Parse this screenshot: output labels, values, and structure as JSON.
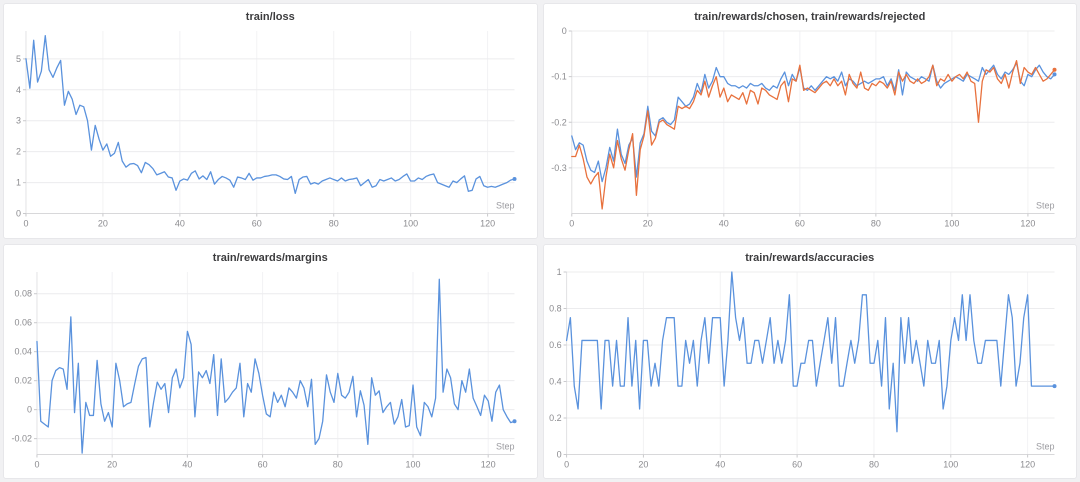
{
  "page": {
    "background": "#f1f1f3",
    "panel_background": "#ffffff",
    "panel_border": "#e7e7ea"
  },
  "style": {
    "grid_h_color": "#ececee",
    "grid_v_color": "#f2f2f4",
    "axis_x_color": "#d8d8da",
    "axis_y_color": "#e3e3e5",
    "tick_mark_color": "#c9c9cc",
    "tick_text_color": "#8b8b8f",
    "step_label_color": "#9b9ba0",
    "title_color": "#3c3c3e",
    "line_blue": "#5a92dd",
    "line_orange": "#e8713d"
  },
  "chart_data": [
    {
      "type": "line",
      "title": "train/loss",
      "xlabel": "Step",
      "xticks": [
        0,
        20,
        40,
        60,
        80,
        100,
        120
      ],
      "xlim": [
        0,
        127
      ],
      "yticks": [
        0,
        1,
        2,
        3,
        4,
        5
      ],
      "ylim": [
        0,
        5.9
      ],
      "grid": true,
      "legend": "none",
      "series": [
        {
          "name": "train/loss",
          "color": "#5a92dd",
          "values": [
            5.0,
            4.05,
            5.6,
            4.25,
            4.6,
            5.75,
            4.65,
            4.4,
            4.7,
            4.95,
            3.5,
            3.95,
            3.7,
            3.2,
            3.5,
            3.45,
            3.0,
            2.05,
            2.85,
            2.4,
            2.05,
            2.25,
            1.85,
            1.95,
            2.3,
            1.7,
            1.5,
            1.6,
            1.62,
            1.55,
            1.32,
            1.65,
            1.58,
            1.45,
            1.25,
            1.3,
            1.35,
            1.18,
            1.15,
            0.75,
            1.05,
            1.12,
            1.08,
            1.3,
            1.38,
            1.12,
            1.22,
            1.1,
            1.35,
            0.95,
            1.1,
            1.2,
            1.15,
            1.08,
            0.85,
            1.18,
            1.15,
            1.1,
            1.3,
            1.08,
            1.15,
            1.15,
            1.2,
            1.22,
            1.25,
            1.25,
            1.2,
            1.12,
            1.1,
            1.2,
            0.65,
            1.1,
            1.18,
            1.2,
            0.95,
            1.0,
            0.95,
            1.05,
            1.1,
            1.15,
            1.1,
            1.05,
            1.15,
            1.05,
            1.1,
            1.12,
            1.15,
            0.9,
            1.0,
            1.1,
            0.85,
            0.9,
            1.1,
            1.05,
            1.1,
            1.15,
            1.05,
            1.1,
            1.2,
            1.28,
            1.05,
            1.05,
            1.15,
            1.1,
            1.2,
            1.25,
            1.28,
            1.0,
            0.95,
            0.9,
            0.85,
            1.05,
            1.0,
            1.12,
            1.22,
            0.72,
            0.75,
            1.12,
            1.2,
            0.9,
            0.85,
            0.88,
            0.85,
            0.9,
            0.95,
            1.0,
            1.08,
            1.12
          ]
        }
      ]
    },
    {
      "type": "line",
      "title": "train/rewards/chosen, train/rewards/rejected",
      "xlabel": "Step",
      "xticks": [
        0,
        20,
        40,
        60,
        80,
        100,
        120
      ],
      "xlim": [
        0,
        127
      ],
      "yticks": [
        0,
        -0.1,
        -0.2,
        -0.3
      ],
      "ylim": [
        -0.4,
        0
      ],
      "grid": true,
      "legend": "none",
      "series": [
        {
          "name": "train/rewards/chosen",
          "color": "#5a92dd",
          "values": [
            -0.23,
            -0.26,
            -0.245,
            -0.25,
            -0.285,
            -0.305,
            -0.31,
            -0.285,
            -0.33,
            -0.3,
            -0.255,
            -0.285,
            -0.215,
            -0.27,
            -0.29,
            -0.25,
            -0.235,
            -0.32,
            -0.245,
            -0.225,
            -0.165,
            -0.22,
            -0.23,
            -0.195,
            -0.19,
            -0.2,
            -0.205,
            -0.195,
            -0.145,
            -0.155,
            -0.165,
            -0.16,
            -0.145,
            -0.115,
            -0.135,
            -0.095,
            -0.125,
            -0.11,
            -0.08,
            -0.1,
            -0.1,
            -0.115,
            -0.12,
            -0.12,
            -0.125,
            -0.12,
            -0.125,
            -0.115,
            -0.12,
            -0.12,
            -0.115,
            -0.125,
            -0.13,
            -0.12,
            -0.125,
            -0.105,
            -0.09,
            -0.12,
            -0.095,
            -0.11,
            -0.08,
            -0.125,
            -0.13,
            -0.12,
            -0.13,
            -0.12,
            -0.11,
            -0.1,
            -0.105,
            -0.1,
            -0.11,
            -0.09,
            -0.12,
            -0.105,
            -0.11,
            -0.12,
            -0.115,
            -0.11,
            -0.115,
            -0.11,
            -0.105,
            -0.105,
            -0.1,
            -0.12,
            -0.105,
            -0.13,
            -0.085,
            -0.14,
            -0.09,
            -0.1,
            -0.105,
            -0.11,
            -0.1,
            -0.105,
            -0.11,
            -0.075,
            -0.11,
            -0.125,
            -0.115,
            -0.11,
            -0.105,
            -0.1,
            -0.105,
            -0.11,
            -0.095,
            -0.1,
            -0.105,
            -0.11,
            -0.08,
            -0.095,
            -0.085,
            -0.075,
            -0.095,
            -0.105,
            -0.09,
            -0.095,
            -0.085,
            -0.07,
            -0.11,
            -0.12,
            -0.095,
            -0.1,
            -0.085,
            -0.075,
            -0.09,
            -0.1,
            -0.105,
            -0.095
          ]
        },
        {
          "name": "train/rewards/rejected",
          "color": "#e8713d",
          "values": [
            -0.275,
            -0.275,
            -0.25,
            -0.28,
            -0.32,
            -0.335,
            -0.32,
            -0.31,
            -0.39,
            -0.32,
            -0.27,
            -0.3,
            -0.24,
            -0.28,
            -0.305,
            -0.26,
            -0.225,
            -0.36,
            -0.26,
            -0.23,
            -0.175,
            -0.25,
            -0.235,
            -0.2,
            -0.195,
            -0.205,
            -0.21,
            -0.215,
            -0.165,
            -0.17,
            -0.165,
            -0.17,
            -0.155,
            -0.13,
            -0.14,
            -0.11,
            -0.145,
            -0.12,
            -0.1,
            -0.145,
            -0.125,
            -0.155,
            -0.14,
            -0.145,
            -0.15,
            -0.135,
            -0.16,
            -0.13,
            -0.135,
            -0.16,
            -0.125,
            -0.13,
            -0.14,
            -0.145,
            -0.15,
            -0.12,
            -0.11,
            -0.155,
            -0.105,
            -0.11,
            -0.075,
            -0.13,
            -0.125,
            -0.13,
            -0.135,
            -0.125,
            -0.115,
            -0.11,
            -0.12,
            -0.105,
            -0.12,
            -0.11,
            -0.14,
            -0.095,
            -0.115,
            -0.125,
            -0.09,
            -0.125,
            -0.13,
            -0.115,
            -0.12,
            -0.11,
            -0.115,
            -0.125,
            -0.11,
            -0.14,
            -0.09,
            -0.11,
            -0.095,
            -0.11,
            -0.115,
            -0.105,
            -0.115,
            -0.11,
            -0.1,
            -0.075,
            -0.12,
            -0.105,
            -0.11,
            -0.095,
            -0.11,
            -0.1,
            -0.095,
            -0.105,
            -0.09,
            -0.11,
            -0.115,
            -0.2,
            -0.11,
            -0.085,
            -0.09,
            -0.08,
            -0.105,
            -0.115,
            -0.095,
            -0.125,
            -0.09,
            -0.065,
            -0.115,
            -0.08,
            -0.09,
            -0.095,
            -0.08,
            -0.095,
            -0.11,
            -0.105,
            -0.095,
            -0.085
          ]
        }
      ]
    },
    {
      "type": "line",
      "title": "train/rewards/margins",
      "xlabel": "Step",
      "xticks": [
        0,
        20,
        40,
        60,
        80,
        100,
        120
      ],
      "xlim": [
        0,
        127
      ],
      "yticks": [
        -0.02,
        0,
        0.02,
        0.04,
        0.06,
        0.08
      ],
      "ylim": [
        -0.031,
        0.095
      ],
      "grid": true,
      "legend": "none",
      "series": [
        {
          "name": "train/rewards/margins",
          "color": "#5a92dd",
          "values": [
            0.047,
            -0.008,
            -0.01,
            -0.012,
            0.02,
            0.027,
            0.029,
            0.028,
            0.014,
            0.064,
            -0.002,
            0.032,
            -0.03,
            0.005,
            -0.004,
            -0.004,
            0.034,
            0.004,
            -0.008,
            -0.002,
            -0.012,
            0.032,
            0.02,
            0.002,
            0.004,
            0.005,
            0.018,
            0.03,
            0.035,
            0.036,
            -0.012,
            0.005,
            0.019,
            0.014,
            0.018,
            -0.002,
            0.022,
            0.028,
            0.015,
            0.022,
            0.054,
            0.045,
            -0.005,
            0.026,
            0.022,
            0.027,
            0.018,
            0.038,
            -0.004,
            0.035,
            0.005,
            0.008,
            0.012,
            0.015,
            0.032,
            -0.005,
            0.018,
            0.012,
            0.035,
            0.025,
            0.01,
            -0.003,
            -0.005,
            0.012,
            0.005,
            0.01,
            0.002,
            0.015,
            0.012,
            0.008,
            0.02,
            0.015,
            0.002,
            0.021,
            -0.024,
            -0.02,
            -0.008,
            0.024,
            0.012,
            0.005,
            0.025,
            0.01,
            0.008,
            0.012,
            0.023,
            -0.005,
            0.013,
            0.003,
            -0.024,
            0.022,
            0.01,
            0.013,
            -0.002,
            0.002,
            0.005,
            -0.01,
            -0.005,
            0.007,
            -0.012,
            -0.011,
            0.017,
            -0.012,
            -0.018,
            0.005,
            0.002,
            -0.005,
            0.008,
            0.09,
            0.012,
            0.028,
            0.022,
            0.004,
            0.0,
            0.02,
            0.012,
            0.028,
            0.008,
            0.002,
            -0.004,
            0.01,
            0.006,
            -0.008,
            0.012,
            0.017,
            0.0,
            -0.005,
            -0.009,
            -0.008
          ]
        }
      ]
    },
    {
      "type": "line",
      "title": "train/rewards/accuracies",
      "xlabel": "Step",
      "xticks": [
        0,
        20,
        40,
        60,
        80,
        100,
        120
      ],
      "xlim": [
        0,
        127
      ],
      "yticks": [
        0,
        0.2,
        0.4,
        0.6,
        0.8,
        1
      ],
      "ylim": [
        0,
        1
      ],
      "grid": true,
      "legend": "none",
      "series": [
        {
          "name": "train/rewards/accuracies",
          "color": "#5a92dd",
          "values": [
            0.625,
            0.75,
            0.375,
            0.25,
            0.625,
            0.625,
            0.625,
            0.625,
            0.625,
            0.25,
            0.625,
            0.625,
            0.375,
            0.625,
            0.375,
            0.375,
            0.75,
            0.375,
            0.625,
            0.25,
            0.625,
            0.625,
            0.375,
            0.5,
            0.375,
            0.625,
            0.75,
            0.75,
            0.75,
            0.375,
            0.375,
            0.625,
            0.5,
            0.625,
            0.375,
            0.625,
            0.75,
            0.5,
            0.75,
            0.75,
            0.75,
            0.375,
            0.625,
            1,
            0.75,
            0.625,
            0.75,
            0.5,
            0.5,
            0.625,
            0.625,
            0.5,
            0.625,
            0.75,
            0.5,
            0.625,
            0.5,
            0.625,
            0.875,
            0.375,
            0.375,
            0.5,
            0.5,
            0.625,
            0.625,
            0.375,
            0.5,
            0.625,
            0.75,
            0.5,
            0.75,
            0.375,
            0.375,
            0.5,
            0.625,
            0.5,
            0.625,
            0.875,
            0.875,
            0.5,
            0.5,
            0.625,
            0.375,
            0.75,
            0.25,
            0.5,
            0.125,
            0.75,
            0.5,
            0.75,
            0.5,
            0.625,
            0.5,
            0.375,
            0.625,
            0.5,
            0.5,
            0.625,
            0.25,
            0.375,
            0.625,
            0.75,
            0.625,
            0.875,
            0.625,
            0.875,
            0.625,
            0.5,
            0.5,
            0.625,
            0.625,
            0.625,
            0.625,
            0.375,
            0.625,
            0.875,
            0.75,
            0.375,
            0.5,
            0.75,
            0.875,
            0.375,
            0.375,
            0.375,
            0.375,
            0.375,
            0.375,
            0.375
          ]
        }
      ]
    }
  ]
}
